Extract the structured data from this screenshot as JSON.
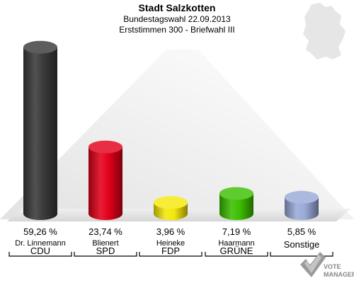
{
  "chart_data": {
    "type": "bar",
    "title": "Stadt Salzkotten",
    "subtitle_1": "Bundestagswahl 22.09.2013",
    "subtitle_2": "Erststimmen 300 - Briefwahl III",
    "unit": "%",
    "ylim": [
      0,
      60
    ],
    "grid": false,
    "legend": "none",
    "categories": [
      "CDU",
      "SPD",
      "FDP",
      "GRÜNE",
      "Sonstige"
    ],
    "candidates": [
      "Dr. Linnemann",
      "Blienert",
      "Heineke",
      "Haarmann",
      ""
    ],
    "values": [
      59.26,
      23.74,
      3.96,
      7.19,
      5.85
    ],
    "value_labels": [
      "59,26 %",
      "23,74 %",
      "3,96 %",
      "7,19 %",
      "5,85 %"
    ],
    "colors": [
      "#3a3a3a",
      "#e2001a",
      "#f5e80a",
      "#3cbf00",
      "#9aaad8"
    ]
  },
  "branding": {
    "line1": "VOTE",
    "line2": "MANAGER"
  }
}
